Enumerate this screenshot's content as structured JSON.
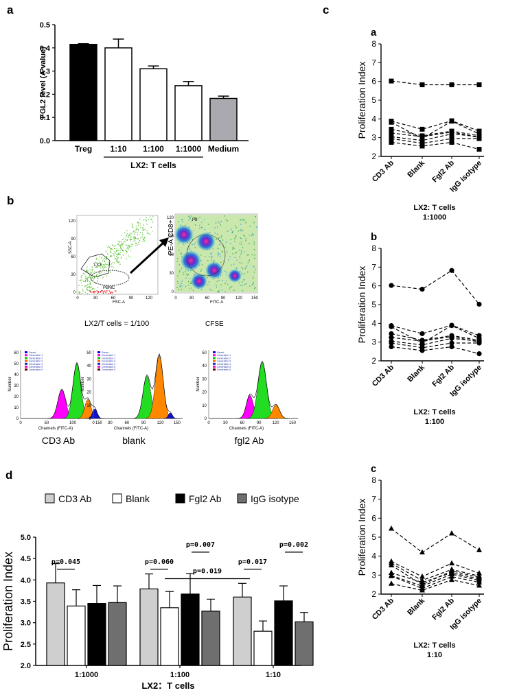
{
  "panels": {
    "a": "a",
    "b": "b",
    "c": "c",
    "d": "d"
  },
  "chart_data": [
    {
      "id": "a",
      "type": "bar",
      "ylabel": "FGL2  level (A value)",
      "ylim": [
        0,
        0.5
      ],
      "yticks": [
        "0.0",
        "0.1",
        "0.2",
        "0.3",
        "0.4",
        "0.5"
      ],
      "categories": [
        "Treg",
        "1:10",
        "1:100",
        "1:1000",
        "Medium"
      ],
      "values": [
        0.415,
        0.4,
        0.31,
        0.237,
        0.182
      ],
      "errors": [
        0.003,
        0.038,
        0.012,
        0.018,
        0.01
      ],
      "colors": [
        "#000000",
        "#ffffff",
        "#ffffff",
        "#ffffff",
        "#a9a9af"
      ],
      "group_label": "LX2:  T cells"
    },
    {
      "id": "b",
      "type": "flow-cytometry",
      "scatter_left": {
        "ylabel": "SSC-A",
        "xlabel": "FSC-A",
        "gate1": "LX2",
        "gate2": "PBMC",
        "axis_ticks": [
          "0",
          "30",
          "60",
          "90",
          "120"
        ]
      },
      "scatter_right": {
        "ylabel": "PE-A CD8+",
        "xlabel": "FITC-A",
        "axis_ticks": [
          "0",
          "30",
          "60",
          "90",
          "120",
          "150"
        ],
        "corner": "P8"
      },
      "captions": [
        "LX2/T cells = 1/100",
        "CFSE"
      ],
      "histograms": [
        {
          "name": "CD3 Ab",
          "ylabel": "Number",
          "xlabel": "Channels (FITC-A)",
          "xticks": [
            "0",
            "50",
            "100",
            "150"
          ],
          "yticks": [
            "0",
            "10",
            "20",
            "30",
            "40",
            "50",
            "60"
          ]
        },
        {
          "name": "blank",
          "ylabel": "Number",
          "xlabel": "Channels (FITC-A)",
          "xticks": [
            "0",
            "30",
            "60",
            "90",
            "120",
            "150"
          ],
          "yticks": [
            "0",
            "10",
            "20",
            "30",
            "40",
            "50"
          ]
        },
        {
          "name": "fgl2 Ab",
          "ylabel": "Number",
          "xlabel": "Channels (FITC-A)",
          "xticks": [
            "0",
            "30",
            "60",
            "90",
            "120",
            "150"
          ],
          "yticks": [
            "0",
            "10",
            "20",
            "30",
            "40",
            "50"
          ]
        }
      ],
      "legend": [
        "Parent",
        "Generation 1",
        "Generation 2",
        "Generation 3",
        "Generation 4",
        "Generation 5",
        "Generation 6"
      ]
    },
    {
      "id": "c",
      "type": "line",
      "categories": [
        "CD3 Ab",
        "Blank",
        "Fgl2 Ab",
        "IgG isotype"
      ],
      "ylabel": "Proliferation Index",
      "ylim": [
        2,
        8
      ],
      "yticks": [
        "2",
        "3",
        "4",
        "5",
        "6",
        "7",
        "8"
      ],
      "subplots": [
        {
          "letter": "a",
          "marker": "square",
          "title": "LX2: T cells",
          "ratio": "1:1000",
          "series": [
            [
              6.02,
              5.82,
              5.82,
              5.82
            ],
            [
              3.88,
              3.45,
              3.9,
              3.35
            ],
            [
              3.82,
              2.95,
              3.88,
              3.2
            ],
            [
              3.45,
              3.1,
              3.35,
              3.1
            ],
            [
              3.25,
              3.05,
              3.3,
              3.0
            ],
            [
              3.05,
              2.85,
              3.2,
              3.05
            ],
            [
              2.95,
              2.7,
              2.95,
              2.95
            ],
            [
              2.75,
              2.55,
              2.75,
              2.38
            ]
          ]
        },
        {
          "letter": "b",
          "marker": "circle",
          "title": "LX2: T cells",
          "ratio": "1:100",
          "series": [
            [
              6.02,
              5.82,
              6.82,
              5.02
            ],
            [
              3.88,
              3.45,
              3.9,
              3.35
            ],
            [
              3.82,
              2.95,
              3.88,
              3.2
            ],
            [
              3.45,
              3.1,
              3.35,
              3.1
            ],
            [
              3.25,
              3.05,
              3.3,
              3.0
            ],
            [
              3.05,
              2.85,
              3.2,
              3.05
            ],
            [
              2.95,
              2.7,
              2.95,
              2.95
            ],
            [
              2.75,
              2.55,
              2.75,
              2.38
            ]
          ]
        },
        {
          "letter": "c",
          "marker": "triangle",
          "title": "LX2: T cells",
          "ratio": "1:10",
          "series": [
            [
              5.45,
              4.2,
              5.2,
              4.32
            ],
            [
              3.72,
              2.92,
              3.62,
              3.1
            ],
            [
              3.62,
              2.72,
              3.3,
              2.95
            ],
            [
              3.52,
              2.5,
              3.22,
              2.88
            ],
            [
              3.12,
              2.62,
              3.12,
              2.8
            ],
            [
              2.98,
              2.42,
              3.05,
              2.72
            ],
            [
              2.95,
              2.3,
              2.92,
              2.62
            ],
            [
              2.55,
              2.2,
              2.75,
              2.45
            ]
          ]
        }
      ]
    },
    {
      "id": "d",
      "type": "bar",
      "ylabel": "Proliferation Index",
      "ylim": [
        2.0,
        5.0
      ],
      "yticks": [
        "2.0",
        "2.5",
        "3.0",
        "3.5",
        "4.0",
        "4.5",
        "5.0"
      ],
      "categories": [
        "1:1000",
        "1:100",
        "1:10"
      ],
      "xlabel": "LX2：T cells",
      "series": [
        {
          "name": "CD3 Ab",
          "color": "#cfcfcf",
          "values": [
            3.93,
            3.79,
            3.6
          ],
          "errors": [
            0.45,
            0.35,
            0.32
          ]
        },
        {
          "name": "Blank",
          "color": "#ffffff",
          "values": [
            3.39,
            3.35,
            2.8
          ],
          "errors": [
            0.38,
            0.38,
            0.24
          ]
        },
        {
          "name": "Fgl2 Ab",
          "color": "#000000",
          "values": [
            3.45,
            3.67,
            3.51
          ],
          "errors": [
            0.42,
            0.48,
            0.35
          ]
        },
        {
          "name": "IgG isotype",
          "color": "#6f6f6f",
          "values": [
            3.47,
            3.27,
            3.02
          ],
          "errors": [
            0.39,
            0.28,
            0.22
          ]
        }
      ],
      "annotations": [
        {
          "text": "p=0.045",
          "group": 0,
          "bars": [
            0,
            1
          ],
          "y": 4.25
        },
        {
          "text": "p=0.060",
          "group": 1,
          "bars": [
            0,
            1
          ],
          "y": 4.25
        },
        {
          "text": "p=0.007",
          "group": 1,
          "bars": [
            2,
            3
          ],
          "y": 4.65
        },
        {
          "text": "p=0.019",
          "group": 1,
          "bars": [
            1,
            1
          ],
          "y": 4.03,
          "across": true
        },
        {
          "text": "p=0.017",
          "group": 2,
          "bars": [
            0,
            1
          ],
          "y": 4.25
        },
        {
          "text": "p=0.002",
          "group": 2,
          "bars": [
            2,
            3
          ],
          "y": 4.65
        }
      ]
    }
  ]
}
